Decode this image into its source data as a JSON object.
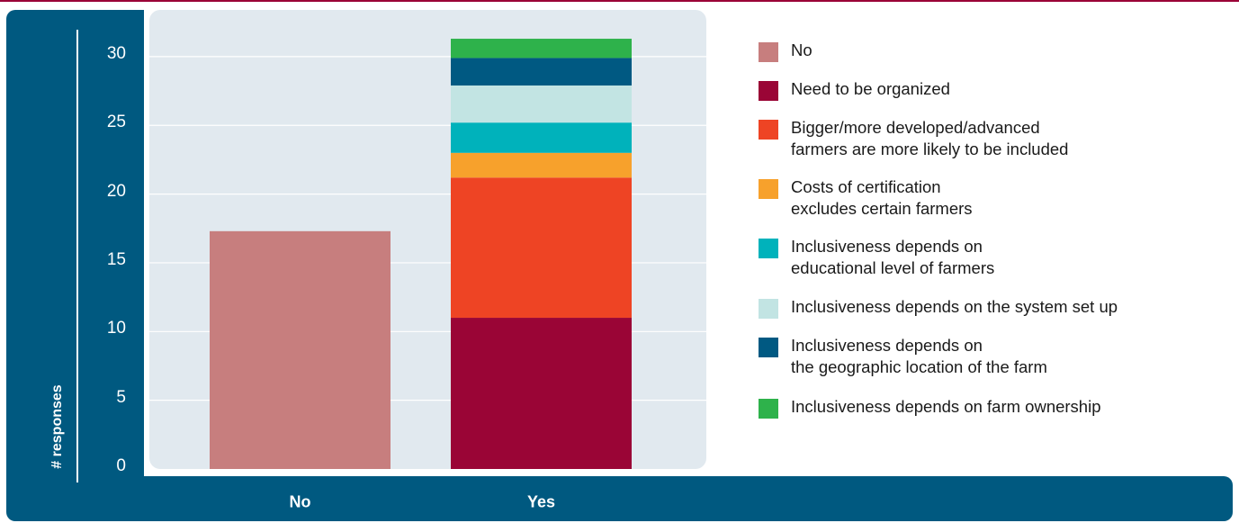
{
  "chart_data": {
    "type": "bar",
    "stacked": true,
    "categories": [
      "No",
      "Yes"
    ],
    "ylabel": "# responses",
    "xlabel": "",
    "ylim": [
      0,
      33
    ],
    "yticks": [
      0,
      5,
      10,
      15,
      20,
      25,
      30
    ],
    "series": [
      {
        "name": "No",
        "color": "#c77e7e",
        "values": [
          17.3,
          0
        ]
      },
      {
        "name": "Need to be organized",
        "color": "#9a0536",
        "values": [
          0,
          11
        ]
      },
      {
        "name": "Bigger/more developed/advanced\nfarmers are more likely to be included",
        "color": "#ee4424",
        "values": [
          0,
          10.2
        ]
      },
      {
        "name": "Costs of certification\nexcludes certain farmers",
        "color": "#f7a12c",
        "values": [
          0,
          1.8
        ]
      },
      {
        "name": "Inclusiveness depends on\neducational level of farmers",
        "color": "#00b2bb",
        "values": [
          0,
          2.2
        ]
      },
      {
        "name": "Inclusiveness depends on the system set up",
        "color": "#c2e4e3",
        "values": [
          0,
          2.7
        ]
      },
      {
        "name": "Inclusiveness depends on\nthe geographic location of the farm",
        "color": "#005982",
        "values": [
          0,
          2
        ]
      },
      {
        "name": "Inclusiveness depends on farm ownership",
        "color": "#2eb24b",
        "values": [
          0,
          1.4
        ]
      }
    ],
    "legend_position": "right",
    "grid": "horizontal"
  }
}
